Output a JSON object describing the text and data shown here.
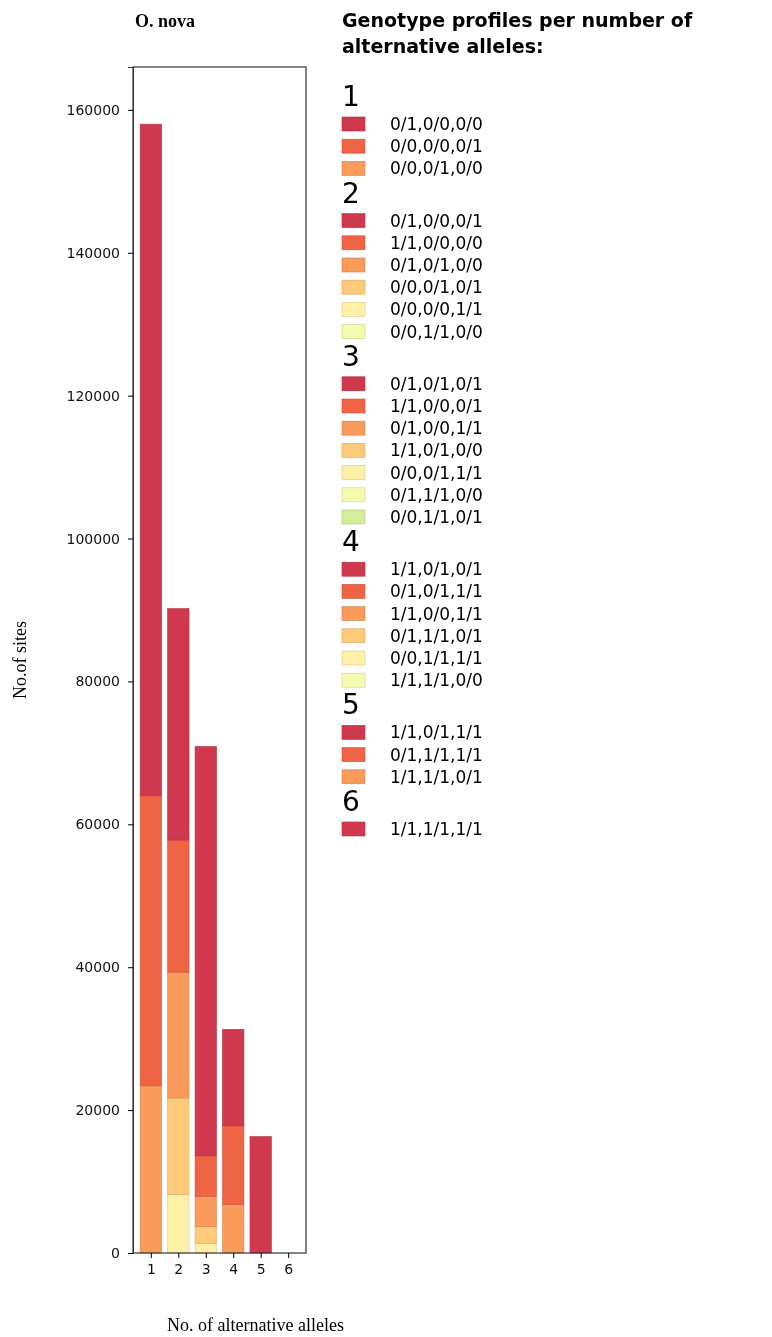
{
  "chart_data": {
    "type": "bar",
    "title": "O. nova",
    "xlabel": "No. of alternative alleles",
    "ylabel": "No.of sites",
    "legend_title": "Genotype profiles per number of alternative alleles:",
    "categories": [
      "1",
      "2",
      "3",
      "4",
      "5",
      "6"
    ],
    "stacked": true,
    "legend": "right",
    "ylim": [
      0,
      166000
    ],
    "yticks": [
      0,
      20000,
      40000,
      60000,
      80000,
      100000,
      120000,
      140000,
      160000
    ],
    "series": [
      {
        "name": "0/0,0/1,0/0",
        "color": "#f99b5a",
        "values": [
          23400,
          null,
          null,
          null,
          null,
          null
        ]
      },
      {
        "name": "0/0,0/0,0/1",
        "color": "#ee6445",
        "values": [
          40600,
          null,
          null,
          null,
          null,
          null
        ]
      },
      {
        "name": "0/1,0/0,0/0",
        "color": "#d0384e",
        "values": [
          94000,
          null,
          null,
          null,
          null,
          null
        ]
      },
      {
        "name": "0/0,1/1,0/0",
        "color": "#f4faae",
        "values": [
          null,
          0,
          null,
          null,
          null,
          null
        ]
      },
      {
        "name": "0/0,0/0,1/1",
        "color": "#fff0a8",
        "values": [
          null,
          8200,
          null,
          null,
          null,
          null
        ]
      },
      {
        "name": "0/0,0/1,0/1",
        "color": "#fdca79",
        "values": [
          null,
          13500,
          null,
          null,
          null,
          null
        ]
      },
      {
        "name": "0/1,0/1,0/0",
        "color": "#f99b5a",
        "values": [
          null,
          17600,
          null,
          null,
          null,
          null
        ]
      },
      {
        "name": "1/1,0/0,0/0",
        "color": "#ee6445",
        "values": [
          null,
          18500,
          null,
          null,
          null,
          null
        ]
      },
      {
        "name": "0/1,0/0,0/1",
        "color": "#d0384e",
        "values": [
          null,
          32400,
          null,
          null,
          null,
          null
        ]
      },
      {
        "name": "0/0,1/1,0/1",
        "color": "#d3ee9b",
        "values": [
          null,
          null,
          0,
          null,
          null,
          null
        ]
      },
      {
        "name": "0/1,1/1,0/0",
        "color": "#f4faae",
        "values": [
          null,
          null,
          0,
          null,
          null,
          null
        ]
      },
      {
        "name": "0/0,0/1,1/1",
        "color": "#fff0a8",
        "values": [
          null,
          null,
          1300,
          null,
          null,
          null
        ]
      },
      {
        "name": "1/1,0/1,0/0",
        "color": "#fdca79",
        "values": [
          null,
          null,
          2400,
          null,
          null,
          null
        ]
      },
      {
        "name": "0/1,0/0,1/1",
        "color": "#f99b5a",
        "values": [
          null,
          null,
          4200,
          null,
          null,
          null
        ]
      },
      {
        "name": "1/1,0/0,0/1",
        "color": "#ee6445",
        "values": [
          null,
          null,
          5700,
          null,
          null,
          null
        ]
      },
      {
        "name": "0/1,0/1,0/1",
        "color": "#d0384e",
        "values": [
          null,
          null,
          57300,
          null,
          null,
          null
        ]
      },
      {
        "name": "1/1,1/1,0/0",
        "color": "#f4faae",
        "values": [
          null,
          null,
          null,
          0,
          null,
          null
        ]
      },
      {
        "name": "0/0,1/1,1/1",
        "color": "#fff0a8",
        "values": [
          null,
          null,
          null,
          0,
          null,
          null
        ]
      },
      {
        "name": "0/1,1/1,0/1",
        "color": "#fdca79",
        "values": [
          null,
          null,
          null,
          0,
          null,
          null
        ]
      },
      {
        "name": "1/1,0/0,1/1",
        "color": "#f99b5a",
        "values": [
          null,
          null,
          null,
          6800,
          null,
          null
        ]
      },
      {
        "name": "0/1,0/1,1/1",
        "color": "#ee6445",
        "values": [
          null,
          null,
          null,
          11000,
          null,
          null
        ]
      },
      {
        "name": "1/1,0/1,0/1",
        "color": "#d0384e",
        "values": [
          null,
          null,
          null,
          13500,
          null,
          null
        ]
      },
      {
        "name": "1/1,1/1,0/1",
        "color": "#f99b5a",
        "values": [
          null,
          null,
          null,
          null,
          0,
          null
        ]
      },
      {
        "name": "0/1,1/1,1/1",
        "color": "#ee6445",
        "values": [
          null,
          null,
          null,
          null,
          0,
          null
        ]
      },
      {
        "name": "1/1,0/1,1/1",
        "color": "#d0384e",
        "values": [
          null,
          null,
          null,
          null,
          16300,
          null
        ]
      },
      {
        "name": "1/1,1/1,1/1",
        "color": "#d0384e",
        "values": [
          null,
          null,
          null,
          null,
          null,
          0
        ]
      }
    ]
  }
}
